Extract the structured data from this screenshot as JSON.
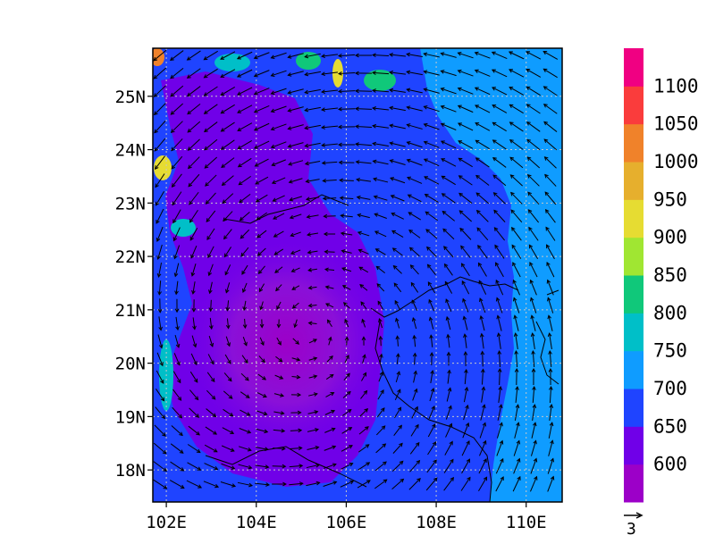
{
  "map": {
    "lon_range": [
      101.7,
      110.8
    ],
    "lat_range": [
      17.4,
      25.9
    ],
    "lon_ticks": [
      {
        "value": 102,
        "label": "102E"
      },
      {
        "value": 104,
        "label": "104E"
      },
      {
        "value": 106,
        "label": "106E"
      },
      {
        "value": 108,
        "label": "108E"
      },
      {
        "value": 110,
        "label": "110E"
      }
    ],
    "lat_ticks": [
      {
        "value": 18,
        "label": "18N"
      },
      {
        "value": 19,
        "label": "19N"
      },
      {
        "value": 20,
        "label": "20N"
      },
      {
        "value": 21,
        "label": "21N"
      },
      {
        "value": 22,
        "label": "22N"
      },
      {
        "value": 23,
        "label": "23N"
      },
      {
        "value": 24,
        "label": "24N"
      },
      {
        "value": 25,
        "label": "25N"
      }
    ],
    "grid": true,
    "shaded_field": {
      "center": {
        "lon": 105.2,
        "lat": 20.6
      },
      "low_region_value": 610,
      "surrounding_value": 665,
      "eastern_value": 720
    },
    "wind_vectors": {
      "pattern": "cyclonic circulation",
      "center": {
        "lon": 105.2,
        "lat": 20.6
      }
    }
  },
  "colorbar": {
    "bins": [
      {
        "color": "#9c00c8"
      },
      {
        "color": "#7000e8"
      },
      {
        "color": "#1f44ff"
      },
      {
        "color": "#0f9cff"
      },
      {
        "color": "#00bfc8"
      },
      {
        "color": "#10c87a"
      },
      {
        "color": "#a0e632"
      },
      {
        "color": "#e6dc32"
      },
      {
        "color": "#e6af2d"
      },
      {
        "color": "#f0822a"
      },
      {
        "color": "#fa3c3c"
      },
      {
        "color": "#f00082"
      }
    ],
    "labels": [
      "600",
      "650",
      "700",
      "750",
      "800",
      "850",
      "900",
      "950",
      "1000",
      "1050",
      "1100"
    ]
  },
  "reference_vector": {
    "label": "3"
  }
}
